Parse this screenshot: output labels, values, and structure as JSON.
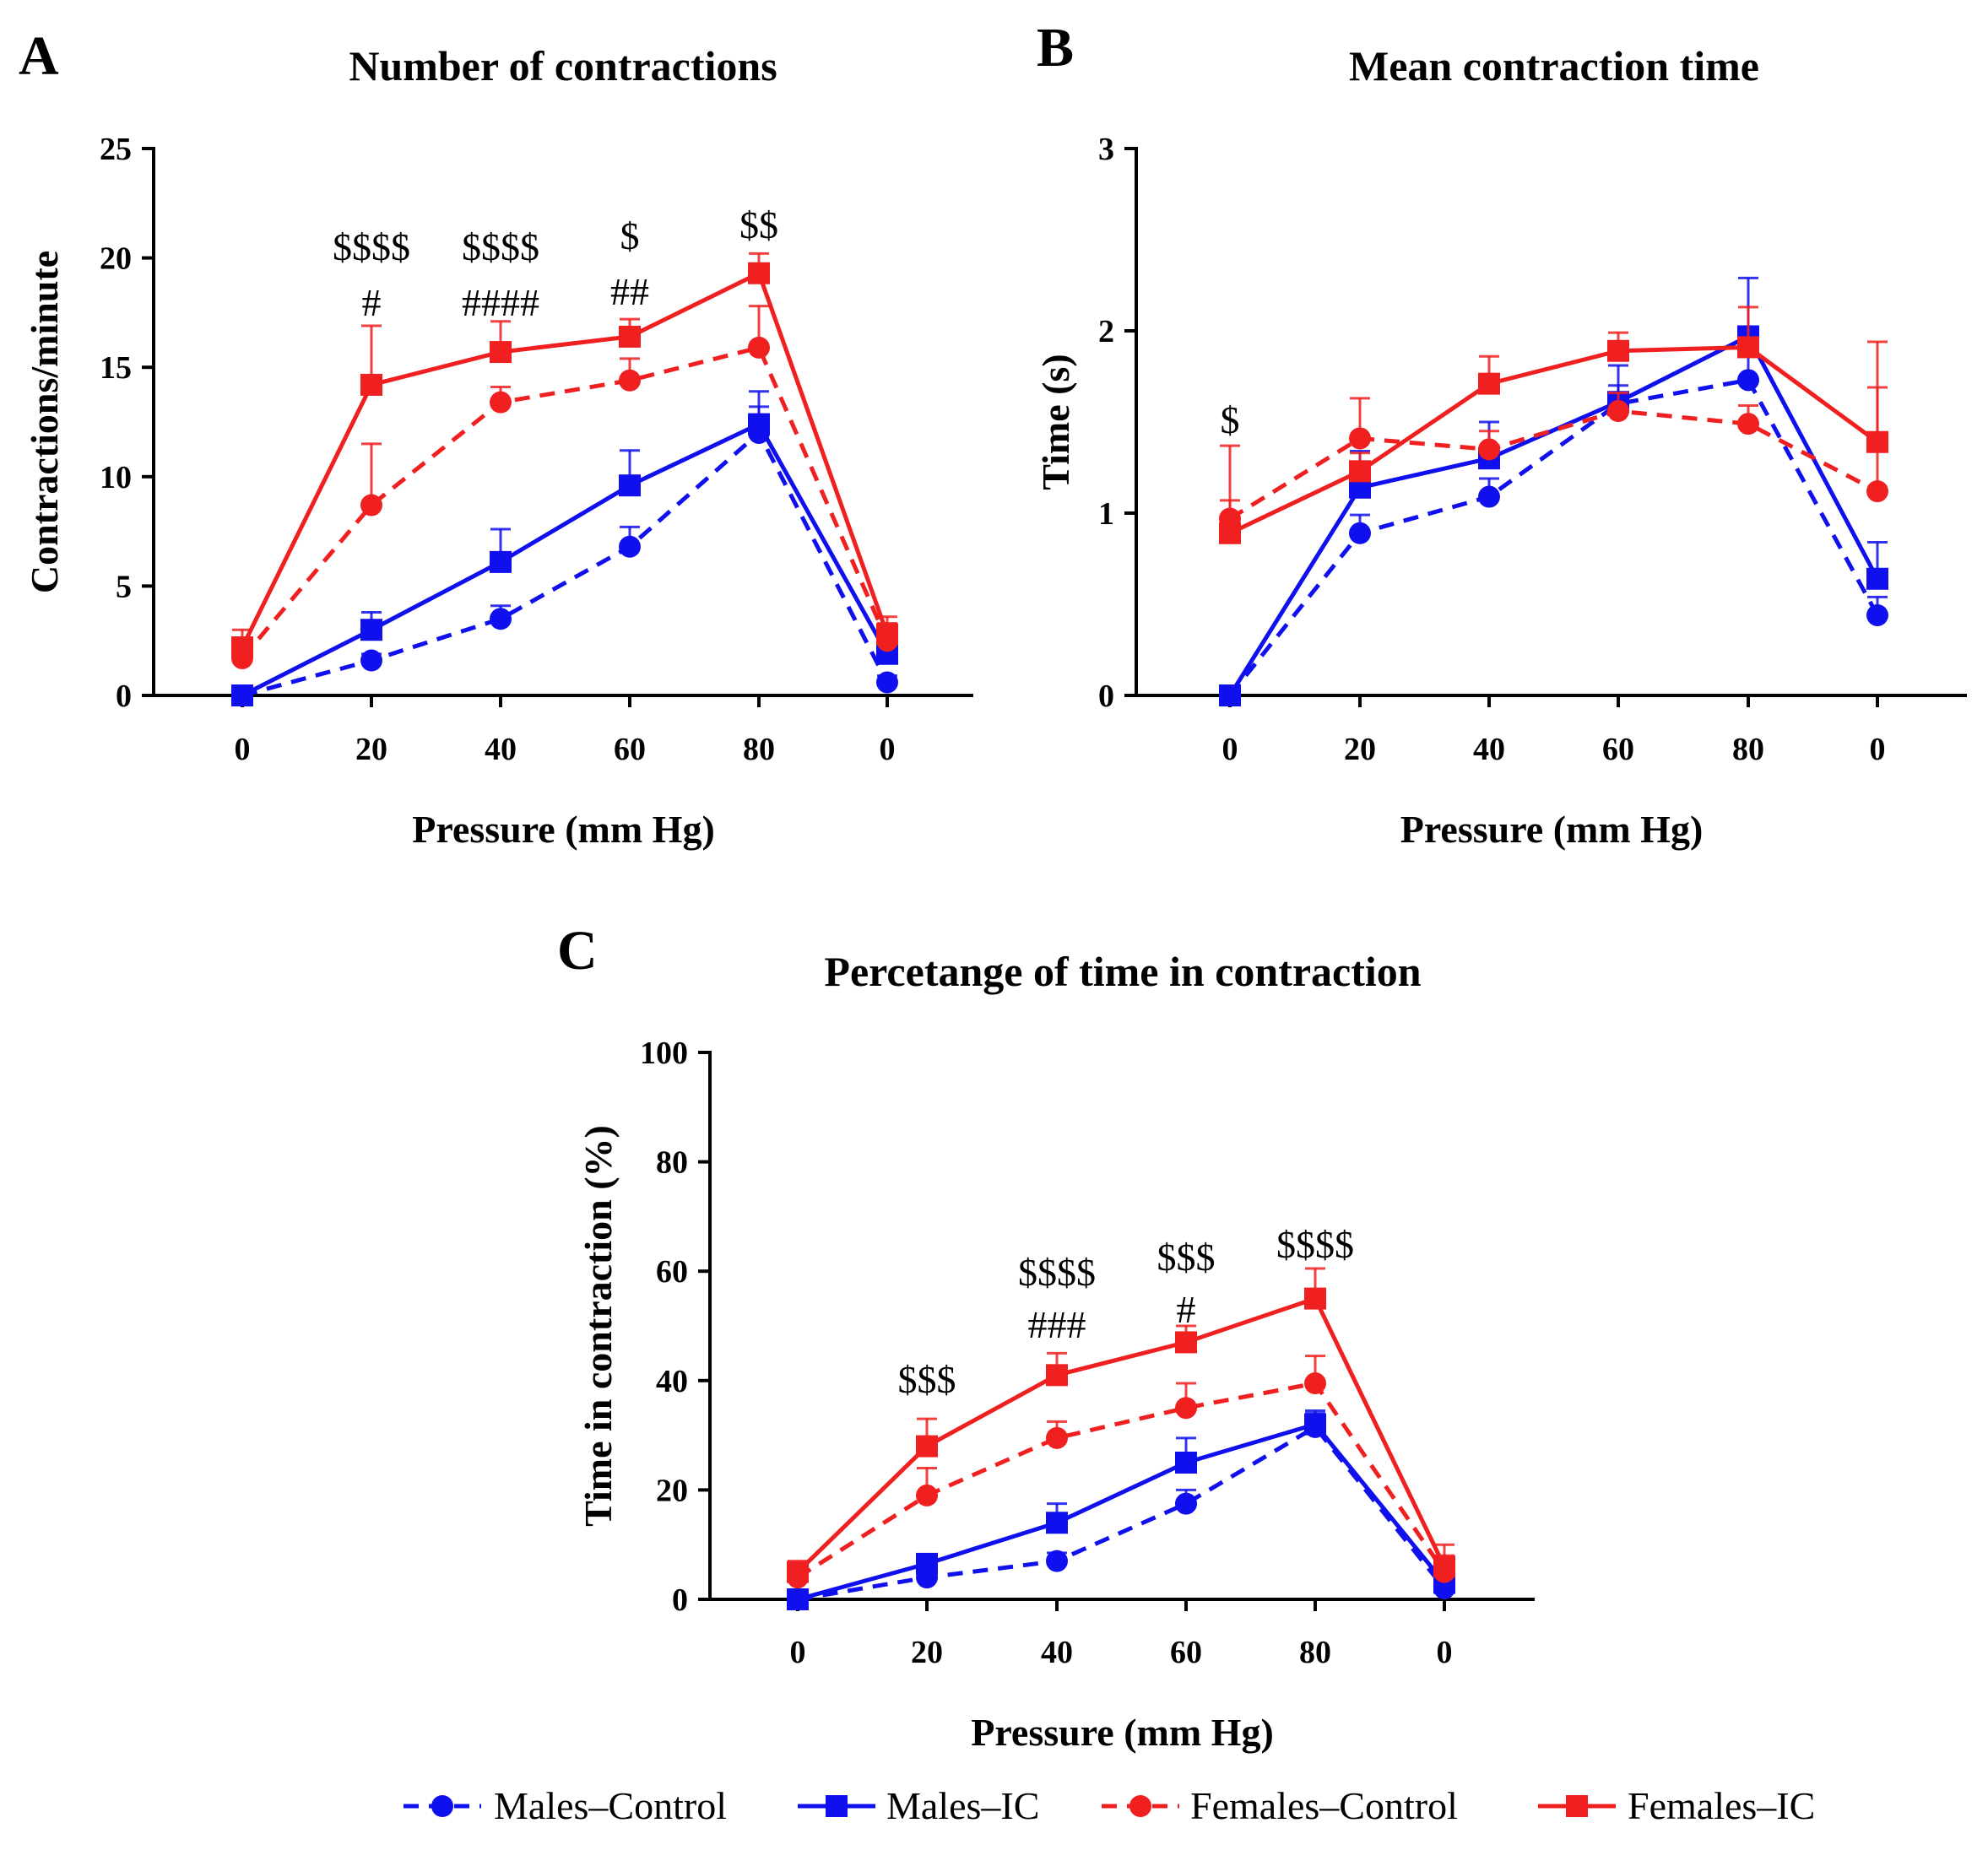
{
  "figure": {
    "legend": [
      {
        "label": "Males–Control",
        "color": "#1010ee",
        "dash": true,
        "marker": "circle"
      },
      {
        "label": "Males–IC",
        "color": "#1010ee",
        "dash": false,
        "marker": "square"
      },
      {
        "label": "Females–Control",
        "color": "#f02020",
        "dash": true,
        "marker": "circle"
      },
      {
        "label": "Females–IC",
        "color": "#f02020",
        "dash": false,
        "marker": "square"
      }
    ]
  },
  "chart_data": [
    {
      "panel": "A",
      "type": "line",
      "title": "Number of contractions",
      "xlabel": "Pressure (mm Hg)",
      "ylabel": "Contractions/minute",
      "categories": [
        "0",
        "20",
        "40",
        "60",
        "80",
        "0"
      ],
      "ylim": [
        0,
        25
      ],
      "yticks": [
        "0",
        "5",
        "10",
        "15",
        "20",
        "25"
      ],
      "series": [
        {
          "name": "Males–Control",
          "values": [
            0,
            1.6,
            3.5,
            6.8,
            12.0,
            0.6
          ],
          "errors": [
            0,
            0.3,
            0.6,
            0.9,
            1.2,
            0.3
          ]
        },
        {
          "name": "Males–IC",
          "values": [
            0,
            3.0,
            6.1,
            9.6,
            12.4,
            1.9
          ],
          "errors": [
            0,
            0.8,
            1.5,
            1.6,
            1.5,
            0.8
          ]
        },
        {
          "name": "Females–Control",
          "values": [
            1.7,
            8.7,
            13.4,
            14.4,
            15.9,
            2.5
          ],
          "errors": [
            0.8,
            2.8,
            0.7,
            1.0,
            1.9,
            0.8
          ]
        },
        {
          "name": "Females–IC",
          "values": [
            2.2,
            14.2,
            15.7,
            16.4,
            19.3,
            2.8
          ],
          "errors": [
            0.8,
            2.7,
            1.4,
            0.8,
            0.9,
            0.8
          ]
        }
      ],
      "annotations": [
        {
          "category_index": 1,
          "lines": [
            "$$$$",
            "#"
          ]
        },
        {
          "category_index": 2,
          "lines": [
            "$$$$",
            "####"
          ]
        },
        {
          "category_index": 3,
          "lines": [
            "$",
            "##"
          ]
        },
        {
          "category_index": 4,
          "lines": [
            "$$"
          ]
        }
      ]
    },
    {
      "panel": "B",
      "type": "line",
      "title": "Mean contraction time",
      "xlabel": "Pressure (mm Hg)",
      "ylabel": "Time (s)",
      "categories": [
        "0",
        "20",
        "40",
        "60",
        "80",
        "0"
      ],
      "ylim": [
        0,
        3
      ],
      "yticks": [
        "0",
        "1",
        "2",
        "3"
      ],
      "series": [
        {
          "name": "Males–Control",
          "values": [
            0,
            0.89,
            1.09,
            1.6,
            1.73,
            0.44
          ],
          "errors": [
            0,
            0.1,
            0.1,
            0.1,
            0.15,
            0.1
          ]
        },
        {
          "name": "Males–IC",
          "values": [
            0,
            1.14,
            1.3,
            1.61,
            1.97,
            0.64
          ],
          "errors": [
            0,
            0.2,
            0.2,
            0.2,
            0.32,
            0.2
          ]
        },
        {
          "name": "Females–Control",
          "values": [
            0.97,
            1.41,
            1.35,
            1.56,
            1.49,
            1.12
          ],
          "errors": [
            0.4,
            0.22,
            0.1,
            0.1,
            0.1,
            0.57
          ]
        },
        {
          "name": "Females–IC",
          "values": [
            0.89,
            1.23,
            1.71,
            1.89,
            1.91,
            1.39
          ],
          "errors": [
            0.18,
            0.1,
            0.15,
            0.1,
            0.22,
            0.55
          ]
        }
      ],
      "annotations": [
        {
          "category_index": 0,
          "lines": [
            "$"
          ]
        }
      ]
    },
    {
      "panel": "C",
      "type": "line",
      "title": "Percetange of time in contraction",
      "xlabel": "Pressure (mm Hg)",
      "ylabel": "Time in contraction (%)",
      "categories": [
        "0",
        "20",
        "40",
        "60",
        "80",
        "0"
      ],
      "ylim": [
        0,
        100
      ],
      "yticks": [
        "0",
        "20",
        "40",
        "60",
        "80",
        "100"
      ],
      "series": [
        {
          "name": "Males–Control",
          "values": [
            0,
            4,
            7,
            17.5,
            31.5,
            2
          ],
          "errors": [
            0,
            1,
            1.5,
            2.5,
            2.5,
            1
          ]
        },
        {
          "name": "Males–IC",
          "values": [
            0,
            6.5,
            14,
            25,
            32,
            3
          ],
          "errors": [
            0,
            1.5,
            3.5,
            4.5,
            2.5,
            2
          ]
        },
        {
          "name": "Females–Control",
          "values": [
            4,
            19,
            29.5,
            35,
            39.5,
            5
          ],
          "errors": [
            2.5,
            5,
            3,
            4.5,
            5,
            3
          ]
        },
        {
          "name": "Females–IC",
          "values": [
            5,
            28,
            41,
            47,
            55,
            6
          ],
          "errors": [
            2,
            5,
            4,
            3,
            5.5,
            4
          ]
        }
      ],
      "annotations": [
        {
          "category_index": 1,
          "lines": [
            "$$$"
          ]
        },
        {
          "category_index": 2,
          "lines": [
            "$$$$",
            "###"
          ]
        },
        {
          "category_index": 3,
          "lines": [
            "$$$",
            "#"
          ]
        },
        {
          "category_index": 4,
          "lines": [
            "$$$$"
          ]
        }
      ]
    }
  ]
}
